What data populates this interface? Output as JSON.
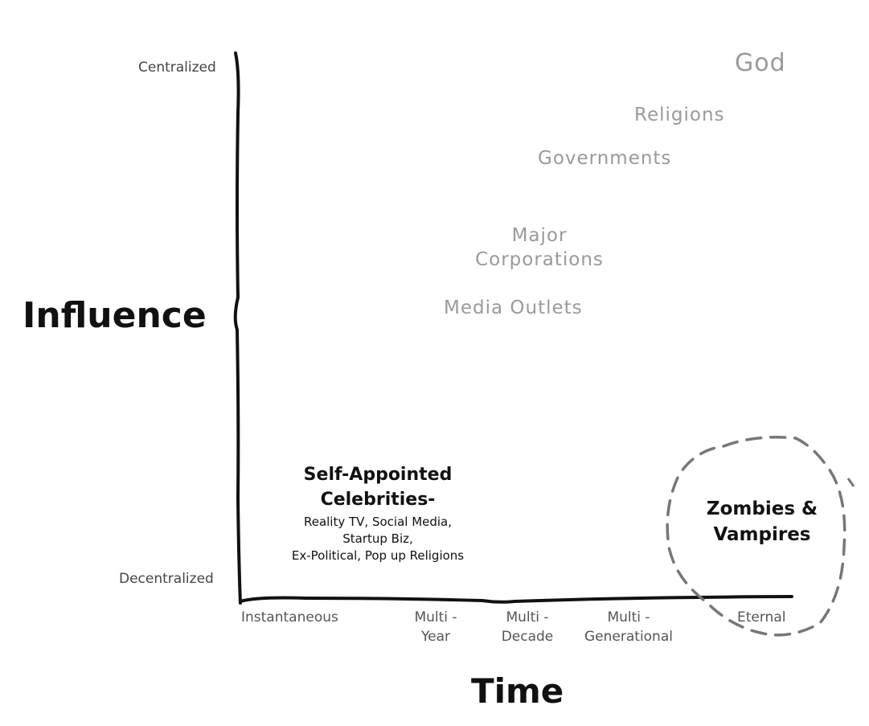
{
  "axes": {
    "y_title": "Influence",
    "x_title": "Time",
    "y_top": "Centralized",
    "y_bottom": "Decentralized",
    "x_ticks": [
      {
        "line1": "Instantaneous",
        "line2": ""
      },
      {
        "line1": "Multi -",
        "line2": "Year"
      },
      {
        "line1": "Multi -",
        "line2": "Decade"
      },
      {
        "line1": "Multi -",
        "line2": "Generational"
      },
      {
        "line1": "Eternal",
        "line2": ""
      }
    ]
  },
  "entities": {
    "god": "God",
    "religions": "Religions",
    "governments": "Governments",
    "major_corporations_line1": "Major",
    "major_corporations_line2": "Corporations",
    "media_outlets": "Media Outlets",
    "celebrities_title_line1": "Self-Appointed",
    "celebrities_title_line2": "Celebrities-",
    "celebrities_detail_line1": "Reality TV, Social Media,",
    "celebrities_detail_line2": "Startup Biz,",
    "celebrities_detail_line3": "Ex-Political, Pop up Religions",
    "zombies_line1": "Zombies &",
    "zombies_line2": "Vampires"
  },
  "colors": {
    "axis": "#111111",
    "muted_text": "#9a9a9a",
    "dashed_circle": "#777777"
  }
}
